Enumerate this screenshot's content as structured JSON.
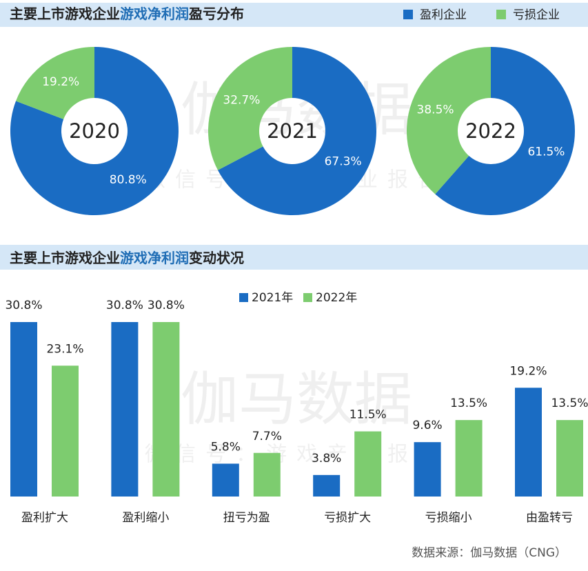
{
  "chart_data": [
    {
      "type": "donut",
      "title_parts": [
        "主要上市游戏企业",
        "游戏净利润",
        "盈亏分布"
      ],
      "title_highlight_color": "#1f6db5",
      "categories": [
        "2020",
        "2021",
        "2022"
      ],
      "series": [
        {
          "name": "盈利企业",
          "color": "#1a6cc3",
          "values": [
            80.8,
            67.3,
            61.5
          ],
          "value_labels": [
            "80.8%",
            "67.3%",
            "61.5%"
          ]
        },
        {
          "name": "亏损企业",
          "color": "#7dcc6f",
          "values": [
            19.2,
            32.7,
            38.5
          ],
          "value_labels": [
            "19.2%",
            "32.7%",
            "38.5%"
          ]
        }
      ]
    },
    {
      "type": "bar",
      "title_parts": [
        "主要上市游戏企业",
        "游戏净利润",
        "变动状况"
      ],
      "title_highlight_color": "#1f6db5",
      "categories": [
        "盈利扩大",
        "盈利缩小",
        "扭亏为盈",
        "亏损扩大",
        "亏损缩小",
        "由盈转亏"
      ],
      "series": [
        {
          "name": "2021年",
          "color": "#1a6cc3",
          "values": [
            30.8,
            30.8,
            5.8,
            3.8,
            9.6,
            19.2
          ],
          "value_labels": [
            "30.8%",
            "30.8%",
            "5.8%",
            "3.8%",
            "9.6%",
            "19.2%"
          ]
        },
        {
          "name": "2022年",
          "color": "#7dcc6f",
          "values": [
            23.1,
            30.8,
            7.7,
            11.5,
            13.5,
            13.5
          ],
          "value_labels": [
            "23.1%",
            "30.8%",
            "7.7%",
            "11.5%",
            "13.5%",
            "13.5%"
          ]
        }
      ]
    }
  ],
  "watermark": {
    "main": "伽马数据",
    "sub": "微信号：游戏产业报告"
  },
  "source": "数据来源：伽马数据（CNG）"
}
